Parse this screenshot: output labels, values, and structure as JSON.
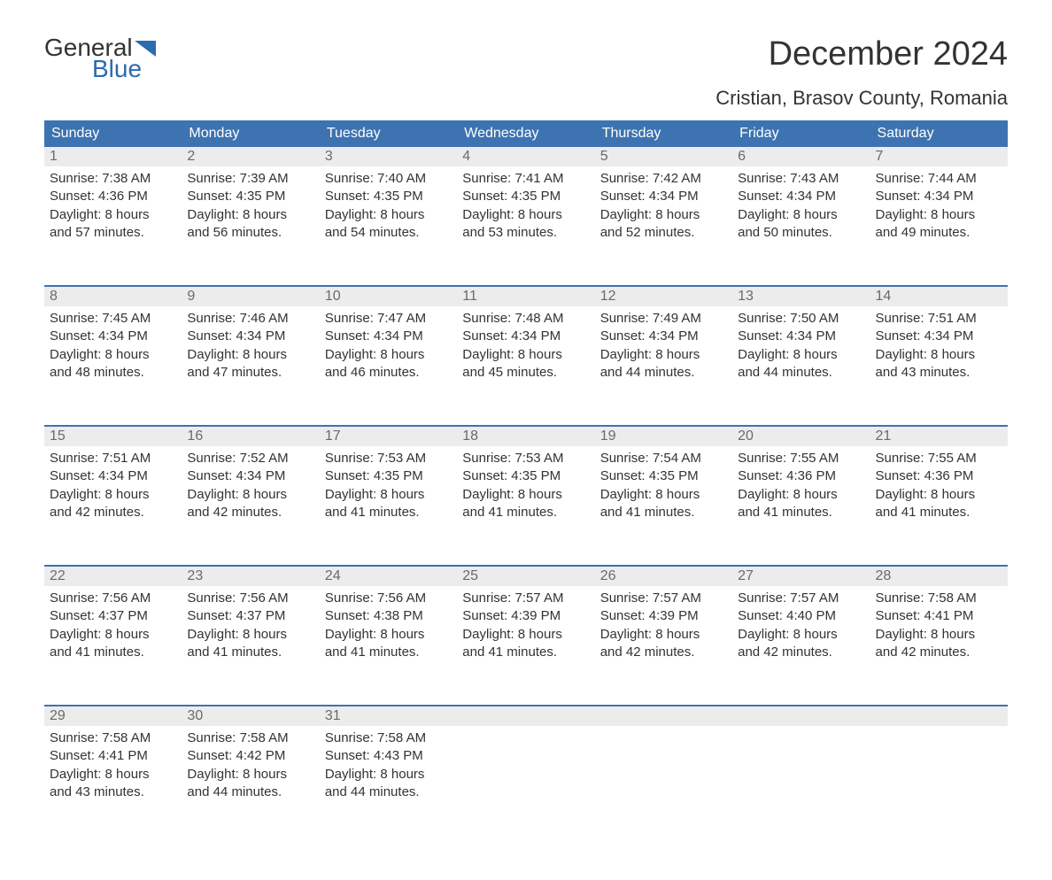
{
  "logo": {
    "general": "General",
    "blue": "Blue",
    "flag_color": "#2b6bb0"
  },
  "title": "December 2024",
  "subtitle": "Cristian, Brasov County, Romania",
  "colors": {
    "header_bg": "#3d73b0",
    "header_text": "#ffffff",
    "daynum_bg": "#ececec",
    "daynum_text": "#6a6a6a",
    "body_text": "#333333",
    "week_border": "#3d73b0",
    "page_bg": "#ffffff"
  },
  "typography": {
    "title_fontsize": 38,
    "subtitle_fontsize": 22,
    "dayheader_fontsize": 16,
    "daynum_fontsize": 16,
    "body_fontsize": 15,
    "logo_fontsize": 28
  },
  "day_names": [
    "Sunday",
    "Monday",
    "Tuesday",
    "Wednesday",
    "Thursday",
    "Friday",
    "Saturday"
  ],
  "weeks": [
    [
      {
        "d": "1",
        "sr": "Sunrise: 7:38 AM",
        "ss": "Sunset: 4:36 PM",
        "dl1": "Daylight: 8 hours",
        "dl2": "and 57 minutes."
      },
      {
        "d": "2",
        "sr": "Sunrise: 7:39 AM",
        "ss": "Sunset: 4:35 PM",
        "dl1": "Daylight: 8 hours",
        "dl2": "and 56 minutes."
      },
      {
        "d": "3",
        "sr": "Sunrise: 7:40 AM",
        "ss": "Sunset: 4:35 PM",
        "dl1": "Daylight: 8 hours",
        "dl2": "and 54 minutes."
      },
      {
        "d": "4",
        "sr": "Sunrise: 7:41 AM",
        "ss": "Sunset: 4:35 PM",
        "dl1": "Daylight: 8 hours",
        "dl2": "and 53 minutes."
      },
      {
        "d": "5",
        "sr": "Sunrise: 7:42 AM",
        "ss": "Sunset: 4:34 PM",
        "dl1": "Daylight: 8 hours",
        "dl2": "and 52 minutes."
      },
      {
        "d": "6",
        "sr": "Sunrise: 7:43 AM",
        "ss": "Sunset: 4:34 PM",
        "dl1": "Daylight: 8 hours",
        "dl2": "and 50 minutes."
      },
      {
        "d": "7",
        "sr": "Sunrise: 7:44 AM",
        "ss": "Sunset: 4:34 PM",
        "dl1": "Daylight: 8 hours",
        "dl2": "and 49 minutes."
      }
    ],
    [
      {
        "d": "8",
        "sr": "Sunrise: 7:45 AM",
        "ss": "Sunset: 4:34 PM",
        "dl1": "Daylight: 8 hours",
        "dl2": "and 48 minutes."
      },
      {
        "d": "9",
        "sr": "Sunrise: 7:46 AM",
        "ss": "Sunset: 4:34 PM",
        "dl1": "Daylight: 8 hours",
        "dl2": "and 47 minutes."
      },
      {
        "d": "10",
        "sr": "Sunrise: 7:47 AM",
        "ss": "Sunset: 4:34 PM",
        "dl1": "Daylight: 8 hours",
        "dl2": "and 46 minutes."
      },
      {
        "d": "11",
        "sr": "Sunrise: 7:48 AM",
        "ss": "Sunset: 4:34 PM",
        "dl1": "Daylight: 8 hours",
        "dl2": "and 45 minutes."
      },
      {
        "d": "12",
        "sr": "Sunrise: 7:49 AM",
        "ss": "Sunset: 4:34 PM",
        "dl1": "Daylight: 8 hours",
        "dl2": "and 44 minutes."
      },
      {
        "d": "13",
        "sr": "Sunrise: 7:50 AM",
        "ss": "Sunset: 4:34 PM",
        "dl1": "Daylight: 8 hours",
        "dl2": "and 44 minutes."
      },
      {
        "d": "14",
        "sr": "Sunrise: 7:51 AM",
        "ss": "Sunset: 4:34 PM",
        "dl1": "Daylight: 8 hours",
        "dl2": "and 43 minutes."
      }
    ],
    [
      {
        "d": "15",
        "sr": "Sunrise: 7:51 AM",
        "ss": "Sunset: 4:34 PM",
        "dl1": "Daylight: 8 hours",
        "dl2": "and 42 minutes."
      },
      {
        "d": "16",
        "sr": "Sunrise: 7:52 AM",
        "ss": "Sunset: 4:34 PM",
        "dl1": "Daylight: 8 hours",
        "dl2": "and 42 minutes."
      },
      {
        "d": "17",
        "sr": "Sunrise: 7:53 AM",
        "ss": "Sunset: 4:35 PM",
        "dl1": "Daylight: 8 hours",
        "dl2": "and 41 minutes."
      },
      {
        "d": "18",
        "sr": "Sunrise: 7:53 AM",
        "ss": "Sunset: 4:35 PM",
        "dl1": "Daylight: 8 hours",
        "dl2": "and 41 minutes."
      },
      {
        "d": "19",
        "sr": "Sunrise: 7:54 AM",
        "ss": "Sunset: 4:35 PM",
        "dl1": "Daylight: 8 hours",
        "dl2": "and 41 minutes."
      },
      {
        "d": "20",
        "sr": "Sunrise: 7:55 AM",
        "ss": "Sunset: 4:36 PM",
        "dl1": "Daylight: 8 hours",
        "dl2": "and 41 minutes."
      },
      {
        "d": "21",
        "sr": "Sunrise: 7:55 AM",
        "ss": "Sunset: 4:36 PM",
        "dl1": "Daylight: 8 hours",
        "dl2": "and 41 minutes."
      }
    ],
    [
      {
        "d": "22",
        "sr": "Sunrise: 7:56 AM",
        "ss": "Sunset: 4:37 PM",
        "dl1": "Daylight: 8 hours",
        "dl2": "and 41 minutes."
      },
      {
        "d": "23",
        "sr": "Sunrise: 7:56 AM",
        "ss": "Sunset: 4:37 PM",
        "dl1": "Daylight: 8 hours",
        "dl2": "and 41 minutes."
      },
      {
        "d": "24",
        "sr": "Sunrise: 7:56 AM",
        "ss": "Sunset: 4:38 PM",
        "dl1": "Daylight: 8 hours",
        "dl2": "and 41 minutes."
      },
      {
        "d": "25",
        "sr": "Sunrise: 7:57 AM",
        "ss": "Sunset: 4:39 PM",
        "dl1": "Daylight: 8 hours",
        "dl2": "and 41 minutes."
      },
      {
        "d": "26",
        "sr": "Sunrise: 7:57 AM",
        "ss": "Sunset: 4:39 PM",
        "dl1": "Daylight: 8 hours",
        "dl2": "and 42 minutes."
      },
      {
        "d": "27",
        "sr": "Sunrise: 7:57 AM",
        "ss": "Sunset: 4:40 PM",
        "dl1": "Daylight: 8 hours",
        "dl2": "and 42 minutes."
      },
      {
        "d": "28",
        "sr": "Sunrise: 7:58 AM",
        "ss": "Sunset: 4:41 PM",
        "dl1": "Daylight: 8 hours",
        "dl2": "and 42 minutes."
      }
    ],
    [
      {
        "d": "29",
        "sr": "Sunrise: 7:58 AM",
        "ss": "Sunset: 4:41 PM",
        "dl1": "Daylight: 8 hours",
        "dl2": "and 43 minutes."
      },
      {
        "d": "30",
        "sr": "Sunrise: 7:58 AM",
        "ss": "Sunset: 4:42 PM",
        "dl1": "Daylight: 8 hours",
        "dl2": "and 44 minutes."
      },
      {
        "d": "31",
        "sr": "Sunrise: 7:58 AM",
        "ss": "Sunset: 4:43 PM",
        "dl1": "Daylight: 8 hours",
        "dl2": "and 44 minutes."
      },
      null,
      null,
      null,
      null
    ]
  ]
}
